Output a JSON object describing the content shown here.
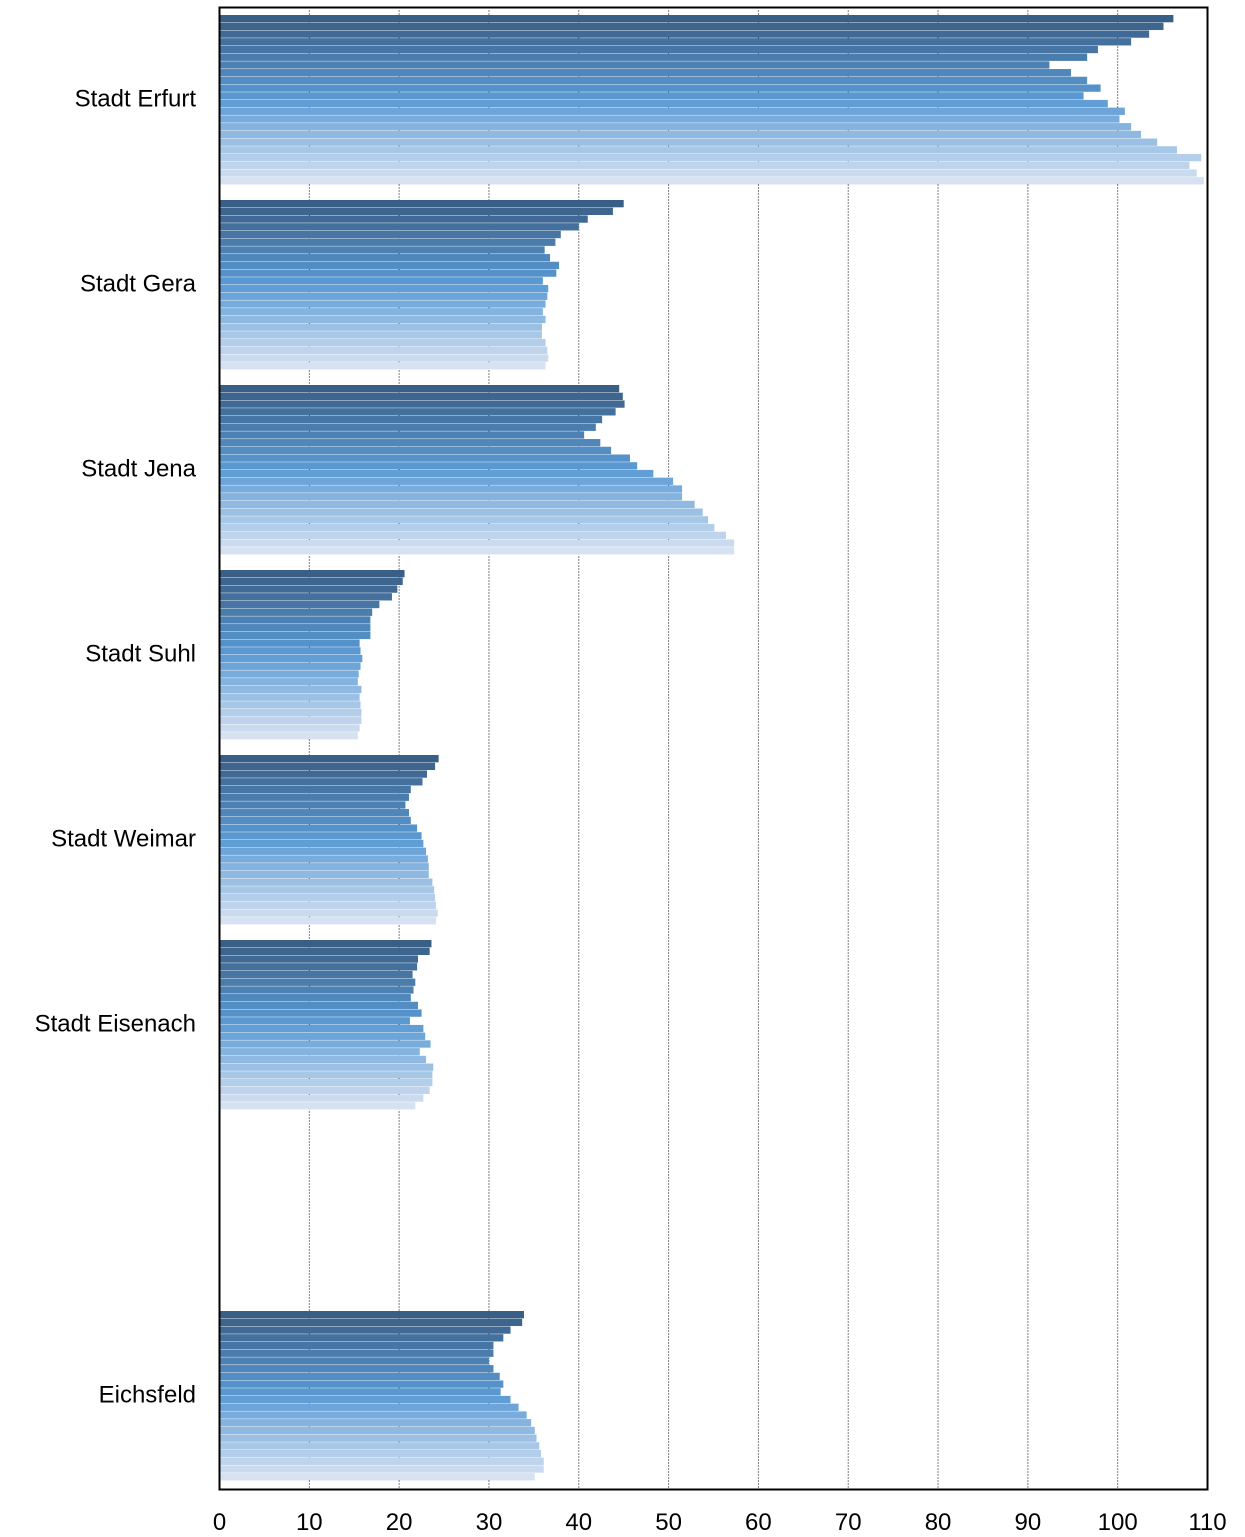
{
  "chart_data": {
    "type": "bar",
    "orientation": "horizontal",
    "title": "",
    "xlabel": "",
    "ylabel": "",
    "xlim": [
      0,
      110
    ],
    "x_ticks": [
      0,
      10,
      20,
      30,
      40,
      50,
      60,
      70,
      80,
      90,
      100,
      110
    ],
    "grid": "vertical dotted",
    "legend": "none",
    "colors": {
      "bar_dark": "#3a5f86",
      "bar_mid": "#5b9bd5",
      "bar_light": "#d6e2f2",
      "grid": "#000000",
      "axis": "#000000"
    },
    "categories": [
      {
        "label": "Stadt Erfurt",
        "values": [
          106.2,
          105.1,
          103.5,
          101.5,
          97.8,
          96.6,
          92.4,
          94.8,
          96.6,
          98.1,
          96.2,
          98.9,
          100.8,
          100.2,
          101.5,
          102.6,
          104.4,
          106.6,
          109.3,
          108.0,
          108.8,
          109.6
        ]
      },
      {
        "label": "Stadt Gera",
        "values": [
          45.0,
          43.8,
          41.0,
          40.0,
          38.0,
          37.4,
          36.2,
          36.8,
          37.8,
          37.5,
          36.0,
          36.6,
          36.5,
          36.3,
          36.0,
          36.3,
          35.9,
          35.9,
          36.3,
          36.5,
          36.6,
          36.3
        ]
      },
      {
        "label": "Stadt Jena",
        "values": [
          44.5,
          44.9,
          45.1,
          44.1,
          42.6,
          41.9,
          40.6,
          42.4,
          43.6,
          45.7,
          46.5,
          48.3,
          50.5,
          51.5,
          51.5,
          52.9,
          53.8,
          54.4,
          55.1,
          56.4,
          57.3,
          57.3
        ]
      },
      {
        "label": "Stadt Suhl",
        "values": [
          20.6,
          20.4,
          19.8,
          19.2,
          17.8,
          17.0,
          16.8,
          16.8,
          16.8,
          15.6,
          15.7,
          15.9,
          15.7,
          15.5,
          15.4,
          15.8,
          15.6,
          15.7,
          15.8,
          15.8,
          15.6,
          15.4
        ]
      },
      {
        "label": "Stadt Weimar",
        "values": [
          24.4,
          24.0,
          23.1,
          22.6,
          21.3,
          21.1,
          20.7,
          21.1,
          21.3,
          22.0,
          22.5,
          22.7,
          23.0,
          23.2,
          23.3,
          23.3,
          23.7,
          23.9,
          24.0,
          24.1,
          24.3,
          24.1
        ]
      },
      {
        "label": "Stadt Eisenach",
        "values": [
          23.6,
          23.4,
          22.1,
          22.0,
          21.5,
          21.8,
          21.6,
          21.3,
          22.1,
          22.5,
          21.2,
          22.7,
          22.9,
          23.5,
          22.3,
          23.0,
          23.8,
          23.7,
          23.7,
          23.4,
          22.7,
          21.8
        ]
      },
      {
        "label": "Eichsfeld",
        "values": [
          33.9,
          33.7,
          32.4,
          31.6,
          30.5,
          30.5,
          30.0,
          30.5,
          31.2,
          31.6,
          31.3,
          32.4,
          33.3,
          34.2,
          34.7,
          35.1,
          35.3,
          35.6,
          35.8,
          36.1,
          36.1,
          35.1
        ]
      }
    ]
  }
}
